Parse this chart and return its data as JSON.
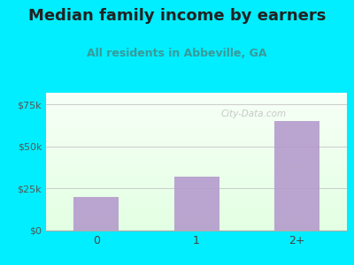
{
  "title": "Median family income by earners",
  "subtitle": "All residents in Abbeville, GA",
  "categories": [
    "0",
    "1",
    "2+"
  ],
  "values": [
    20000,
    32000,
    65000
  ],
  "bar_color": "#b399cc",
  "bg_outer": "#00eeff",
  "title_color": "#222222",
  "subtitle_color": "#3a9a9a",
  "yticks": [
    0,
    25000,
    50000,
    75000
  ],
  "ytick_labels": [
    "$0",
    "$25k",
    "$50k",
    "$75k"
  ],
  "ylim": [
    0,
    82000
  ],
  "title_fontsize": 13,
  "subtitle_fontsize": 9,
  "watermark": "City-Data.com"
}
